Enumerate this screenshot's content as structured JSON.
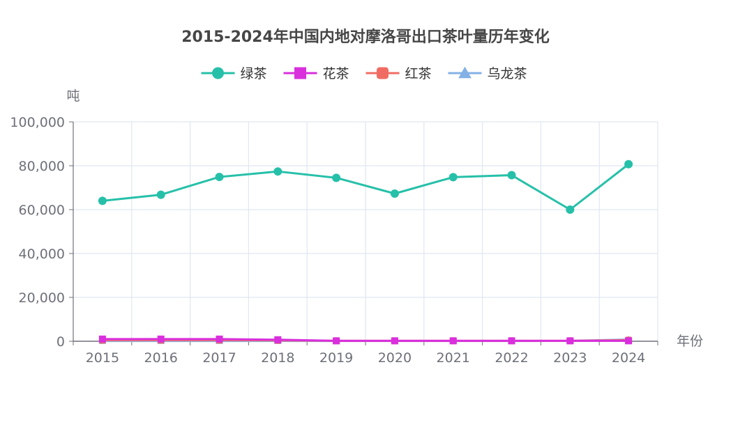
{
  "chart_data": {
    "type": "line",
    "title": "2015-2024年中国内地对摩洛哥出口茶叶量历年变化",
    "xlabel": "年份",
    "ylabel": "吨",
    "categories": [
      "2015",
      "2016",
      "2017",
      "2018",
      "2019",
      "2020",
      "2021",
      "2022",
      "2023",
      "2024"
    ],
    "ylim": [
      0,
      100000
    ],
    "yticks": [
      0,
      20000,
      40000,
      60000,
      80000,
      100000
    ],
    "ytick_labels": [
      "0",
      "20,000",
      "40,000",
      "60,000",
      "80,000",
      "100,000"
    ],
    "grid": true,
    "legend_position": "top-center",
    "series": [
      {
        "name": "绿茶",
        "color": "#26c0a9",
        "marker": "circle",
        "values": [
          64000,
          66800,
          74900,
          77400,
          74500,
          67300,
          74800,
          75700,
          60000,
          80700
        ]
      },
      {
        "name": "花茶",
        "color": "#d92fdc",
        "marker": "square",
        "values": [
          1000,
          1000,
          1000,
          700,
          200,
          200,
          200,
          200,
          200,
          200
        ]
      },
      {
        "name": "红茶",
        "color": "#f06c63",
        "marker": "rounded-square",
        "values": [
          500,
          500,
          500,
          400,
          200,
          200,
          200,
          200,
          200,
          500
        ]
      },
      {
        "name": "乌龙茶",
        "color": "#83b1e6",
        "marker": "triangle",
        "values": [
          100,
          100,
          100,
          100,
          100,
          100,
          100,
          100,
          200,
          800
        ]
      }
    ]
  }
}
